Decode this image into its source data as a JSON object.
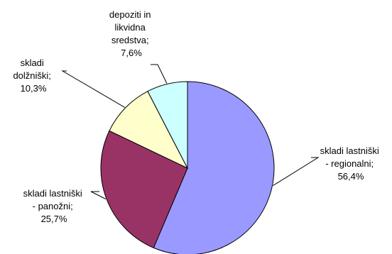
{
  "chart_data": {
    "type": "pie",
    "slices": [
      {
        "label": "skladi lastniški - regionalni",
        "value": 56.4,
        "value_label": "56,4%",
        "color": "#9999ff"
      },
      {
        "label": "skladi lastniški - panožni",
        "value": 25.7,
        "value_label": "25,7%",
        "color": "#993366"
      },
      {
        "label": "skladi dolžniški",
        "value": 10.3,
        "value_label": "10,3%",
        "color": "#ffffcc"
      },
      {
        "label": "depoziti in likvidna sredstva",
        "value": 7.6,
        "value_label": "7,6%",
        "color": "#ccffff"
      }
    ],
    "data_labels": [
      {
        "lines": [
          "skladi lastniški",
          "- regionalni;",
          "56,4%"
        ]
      },
      {
        "lines": [
          "skladi lastniški",
          "- panožni;",
          "25,7%"
        ]
      },
      {
        "lines": [
          "skladi",
          "dolžniški;",
          "10,3%"
        ]
      },
      {
        "lines": [
          "depoziti in",
          "likvidna",
          "sredstva;",
          "7,6%"
        ]
      }
    ],
    "start_angle": "12 o'clock",
    "direction": "clockwise",
    "legend": "none"
  }
}
